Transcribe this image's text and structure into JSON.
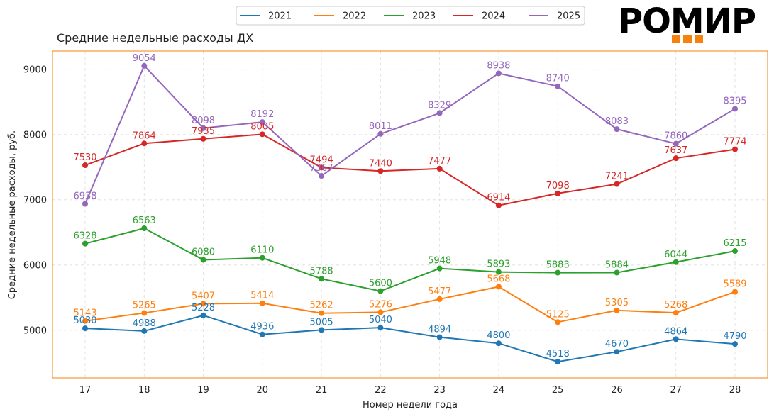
{
  "brand": {
    "logo_text": "РОМИР",
    "accent_color": "#f5820d"
  },
  "chart_data": {
    "type": "line",
    "title": "Средние недельные расходы ДХ",
    "xlabel": "Номер недели года",
    "ylabel": "Средние недельные расходы, руб.",
    "x": [
      17,
      18,
      19,
      20,
      21,
      22,
      23,
      24,
      25,
      26,
      27,
      28
    ],
    "ylim": [
      4270,
      9280
    ],
    "yticks": [
      5000,
      6000,
      7000,
      8000,
      9000
    ],
    "grid": true,
    "legend_position": "top-center",
    "frame_color": "#f5820d",
    "series": [
      {
        "name": "2021",
        "color": "#1f77b4",
        "values": [
          5030,
          4988,
          5228,
          4936,
          5005,
          5040,
          4894,
          4800,
          4518,
          4670,
          4864,
          4790
        ]
      },
      {
        "name": "2022",
        "color": "#ff7f0e",
        "values": [
          5143,
          5265,
          5407,
          5414,
          5262,
          5276,
          5477,
          5668,
          5125,
          5305,
          5268,
          5589
        ]
      },
      {
        "name": "2023",
        "color": "#2ca02c",
        "values": [
          6328,
          6563,
          6080,
          6110,
          5788,
          5600,
          5948,
          5893,
          5883,
          5884,
          6044,
          6215
        ]
      },
      {
        "name": "2024",
        "color": "#d62728",
        "values": [
          7530,
          7864,
          7935,
          8005,
          7494,
          7440,
          7477,
          6914,
          7098,
          7241,
          7637,
          7774
        ]
      },
      {
        "name": "2025",
        "color": "#9467bd",
        "values": [
          6938,
          9054,
          8098,
          8192,
          7367,
          8011,
          8329,
          8938,
          8740,
          8083,
          7860,
          8395
        ]
      }
    ]
  }
}
